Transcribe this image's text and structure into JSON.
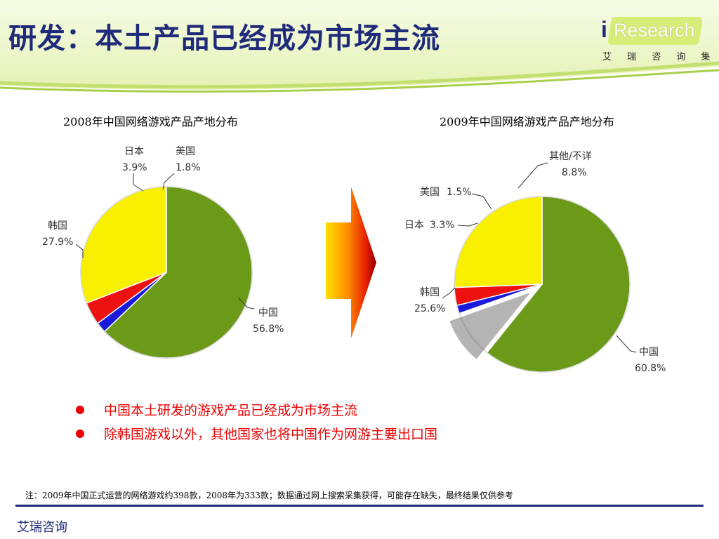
{
  "slide": {
    "title": "研发：本土产品已经成为市场主流",
    "logo": {
      "i": "i",
      "word": "Research",
      "subtitle": "艾 瑞 咨 询 集 团"
    }
  },
  "colors": {
    "title": "#1f2a7a",
    "china": "#6a9a18",
    "korea": "#f8f000",
    "japan": "#ee1111",
    "usa": "#1a1add",
    "other": "#b4b4b4",
    "bullet": "#ee0000"
  },
  "chart_data": [
    {
      "type": "pie",
      "title": "2008年中国网络游戏产品产地分布",
      "slices": [
        {
          "name": "中国",
          "value": 56.8,
          "label": "56.8%",
          "color": "#6a9a18"
        },
        {
          "name": "韩国",
          "value": 27.9,
          "label": "27.9%",
          "color": "#f8f000"
        },
        {
          "name": "日本",
          "value": 3.9,
          "label": "3.9%",
          "color": "#ee1111"
        },
        {
          "name": "美国",
          "value": 1.8,
          "label": "1.8%",
          "color": "#1a1add"
        }
      ]
    },
    {
      "type": "pie",
      "title": "2009年中国网络游戏产品产地分布",
      "slices": [
        {
          "name": "中国",
          "value": 60.8,
          "label": "60.8%",
          "color": "#6a9a18"
        },
        {
          "name": "韩国",
          "value": 25.6,
          "label": "25.6%",
          "color": "#f8f000"
        },
        {
          "name": "日本",
          "value": 3.3,
          "label": "3.3%",
          "color": "#ee1111"
        },
        {
          "name": "美国",
          "value": 1.5,
          "label": "1.5%",
          "color": "#1a1add"
        },
        {
          "name": "其他/不详",
          "value": 8.8,
          "label": "8.8%",
          "color": "#b4b4b4",
          "exploded": true
        }
      ]
    }
  ],
  "bullets": [
    "中国本土研发的游戏产品已经成为市场主流",
    "除韩国游戏以外，其他国家也将中国作为网游主要出口国"
  ],
  "note": "注：2009年中国正式运营的网络游戏约398款，2008年为333款；数据通过网上搜索采集获得，可能存在缺失，最终结果仅供参考",
  "footer": {
    "brand": "艾瑞咨询"
  }
}
